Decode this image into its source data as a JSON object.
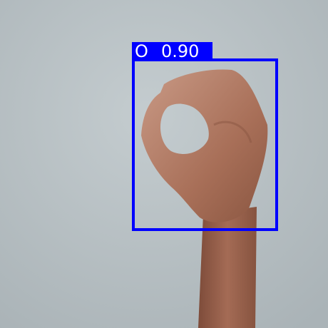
{
  "detection": {
    "label": "O",
    "confidence": "0.90"
  }
}
